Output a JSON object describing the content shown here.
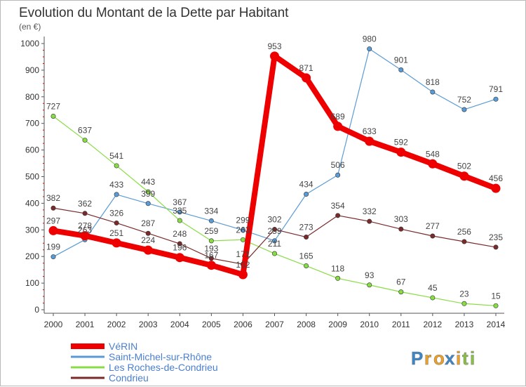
{
  "chart_data": {
    "type": "line",
    "title": "Evolution du Montant de la Dette par Habitant",
    "subtitle": "(en €)",
    "x": [
      "2000",
      "2001",
      "2002",
      "2003",
      "2004",
      "2005",
      "2006",
      "2007",
      "2008",
      "2009",
      "2010",
      "2011",
      "2012",
      "2013",
      "2014"
    ],
    "ylim": [
      0,
      1000
    ],
    "yticks": [
      0,
      100,
      200,
      300,
      400,
      500,
      600,
      700,
      800,
      900,
      1000
    ],
    "grid": false,
    "legend_position": "bottom-left",
    "series": [
      {
        "name": "VéRIN",
        "color": "#ee0000",
        "values": [
          297,
          278,
          251,
          224,
          196,
          167,
          132,
          953,
          871,
          689,
          633,
          592,
          548,
          502,
          456
        ]
      },
      {
        "name": "Saint-Michel-sur-Rhône",
        "color": "#5b9bd5",
        "values": [
          199,
          263,
          433,
          399,
          367,
          334,
          299,
          259,
          434,
          506,
          980,
          901,
          818,
          752,
          791
        ]
      },
      {
        "name": "Les Roches-de-Condrieu",
        "color": "#88dd44",
        "values": [
          727,
          637,
          541,
          443,
          335,
          259,
          263,
          211,
          165,
          118,
          93,
          67,
          45,
          23,
          15
        ]
      },
      {
        "name": "Condrieu",
        "color": "#7a2a2a",
        "values": [
          382,
          362,
          326,
          287,
          248,
          193,
          171,
          302,
          273,
          354,
          332,
          303,
          277,
          256,
          235
        ]
      }
    ]
  },
  "logo": {
    "letters": [
      "P",
      "r",
      "o",
      "x",
      "i",
      "t",
      "i"
    ],
    "colors": [
      "#3a86c8",
      "#f0a020",
      "#f0a020",
      "#3a86c8",
      "#f0a020",
      "#88c040",
      "#88c040"
    ]
  }
}
